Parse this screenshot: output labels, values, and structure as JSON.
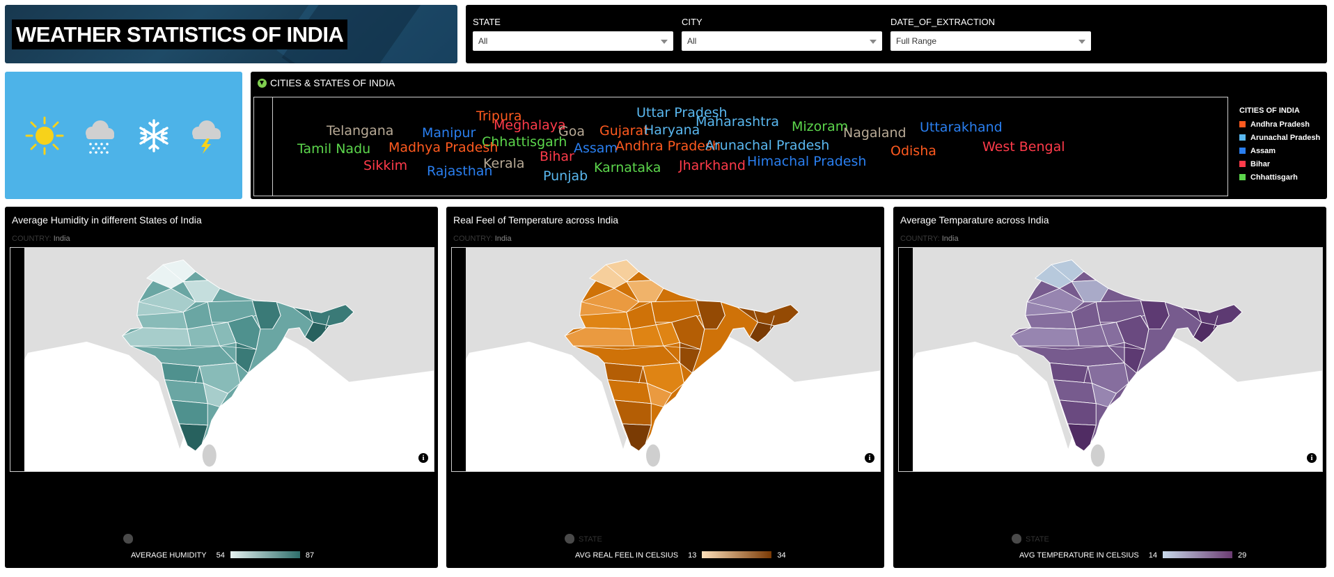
{
  "title": "WEATHER STATISTICS OF INDIA",
  "filters": [
    {
      "label": "STATE",
      "value": "All"
    },
    {
      "label": "CITY",
      "value": "All"
    },
    {
      "label": "DATE_OF_EXTRACTION",
      "value": "Full Range"
    }
  ],
  "weather_icons": [
    "sun-icon",
    "rain-cloud-icon",
    "snowflake-icon",
    "thunderstorm-icon"
  ],
  "word_cloud": {
    "title": "CITIES & STATES OF INDIA",
    "words": [
      {
        "text": "Tripura",
        "color": "#ff5a1f"
      },
      {
        "text": "Uttar Pradesh",
        "color": "#5ab8f0"
      },
      {
        "text": "Telangana",
        "color": "#b8aa96"
      },
      {
        "text": "Manipur",
        "color": "#2a7ff0"
      },
      {
        "text": "Meghalaya",
        "color": "#ff3b4a"
      },
      {
        "text": "Goa",
        "color": "#b8aa96"
      },
      {
        "text": "Gujarat",
        "color": "#ff5a1f"
      },
      {
        "text": "Haryana",
        "color": "#5ab8f0"
      },
      {
        "text": "Maharashtra",
        "color": "#5ab8f0"
      },
      {
        "text": "Mizoram",
        "color": "#5cd64c"
      },
      {
        "text": "Nagaland",
        "color": "#b8aa96"
      },
      {
        "text": "Uttarakhand",
        "color": "#2a7ff0"
      },
      {
        "text": "Chhattisgarh",
        "color": "#5cd64c"
      },
      {
        "text": "Tamil Nadu",
        "color": "#5cd64c"
      },
      {
        "text": "Madhya Pradesh",
        "color": "#ff5a1f"
      },
      {
        "text": "Assam",
        "color": "#2a7ff0"
      },
      {
        "text": "Andhra Pradesh",
        "color": "#ff5a1f"
      },
      {
        "text": "Arunachal Pradesh",
        "color": "#5ab8f0"
      },
      {
        "text": "Odisha",
        "color": "#ff5a1f"
      },
      {
        "text": "West Bengal",
        "color": "#ff3b4a"
      },
      {
        "text": "Bihar",
        "color": "#ff3b4a"
      },
      {
        "text": "Sikkim",
        "color": "#ff3b4a"
      },
      {
        "text": "Kerala",
        "color": "#b8aa96"
      },
      {
        "text": "Rajasthan",
        "color": "#2a7ff0"
      },
      {
        "text": "Karnataka",
        "color": "#5cd64c"
      },
      {
        "text": "Jharkhand",
        "color": "#ff3b4a"
      },
      {
        "text": "Himachal Pradesh",
        "color": "#2a7ff0"
      },
      {
        "text": "Punjab",
        "color": "#5ab8f0"
      }
    ]
  },
  "cloud_legend": {
    "title": "CITIES OF INDIA",
    "items": [
      {
        "label": "Andhra Pradesh",
        "color": "#ff5a1f"
      },
      {
        "label": "Arunachal Pradesh",
        "color": "#5ab8f0"
      },
      {
        "label": "Assam",
        "color": "#2a7ff0"
      },
      {
        "label": "Bihar",
        "color": "#ff3b4a"
      },
      {
        "label": "Chhattisgarh",
        "color": "#5cd64c"
      }
    ]
  },
  "maps": [
    {
      "title": "Average Humidity in different States of India",
      "country_label": "COUNTRY:",
      "country_value": "India",
      "state_label": "",
      "legend_label": "AVERAGE HUMIDITY",
      "min": "54",
      "max": "87",
      "gradient": [
        "#e6f2f1",
        "#2e6e6b"
      ],
      "color_scale": [
        "#eaf3f3",
        "#c5dedd",
        "#a7cdcb",
        "#88bbb8",
        "#6aa6a3",
        "#4f918e",
        "#3a7a77",
        "#27615e"
      ],
      "background": "#ffffff"
    },
    {
      "title": "Real Feel of Temperature across India",
      "country_label": "COUNTRY:",
      "country_value": "India",
      "state_label": "STATE",
      "legend_label": "AVG REAL FEEL IN CELSIUS",
      "min": "13",
      "max": "34",
      "gradient": [
        "#fde0bb",
        "#7a3a05"
      ],
      "color_scale": [
        "#f6cf9c",
        "#f0b36a",
        "#ea9a40",
        "#df8414",
        "#cf7208",
        "#b45e05",
        "#944a04",
        "#7a3b04"
      ],
      "background": "#ffffff"
    },
    {
      "title": "Average Temparature across India",
      "country_label": "COUNTRY:",
      "country_value": "India",
      "state_label": "STATE",
      "legend_label": "AVG TEMPERATURE IN CELSIUS",
      "min": "14",
      "max": "29",
      "gradient": [
        "#c8d9ea",
        "#6b3c72"
      ],
      "color_scale": [
        "#b7c9dc",
        "#a9aac8",
        "#9785b0",
        "#866e9e",
        "#775b8e",
        "#6a4a80",
        "#5d3a72",
        "#502c63"
      ],
      "background": "#ffffff"
    }
  ]
}
